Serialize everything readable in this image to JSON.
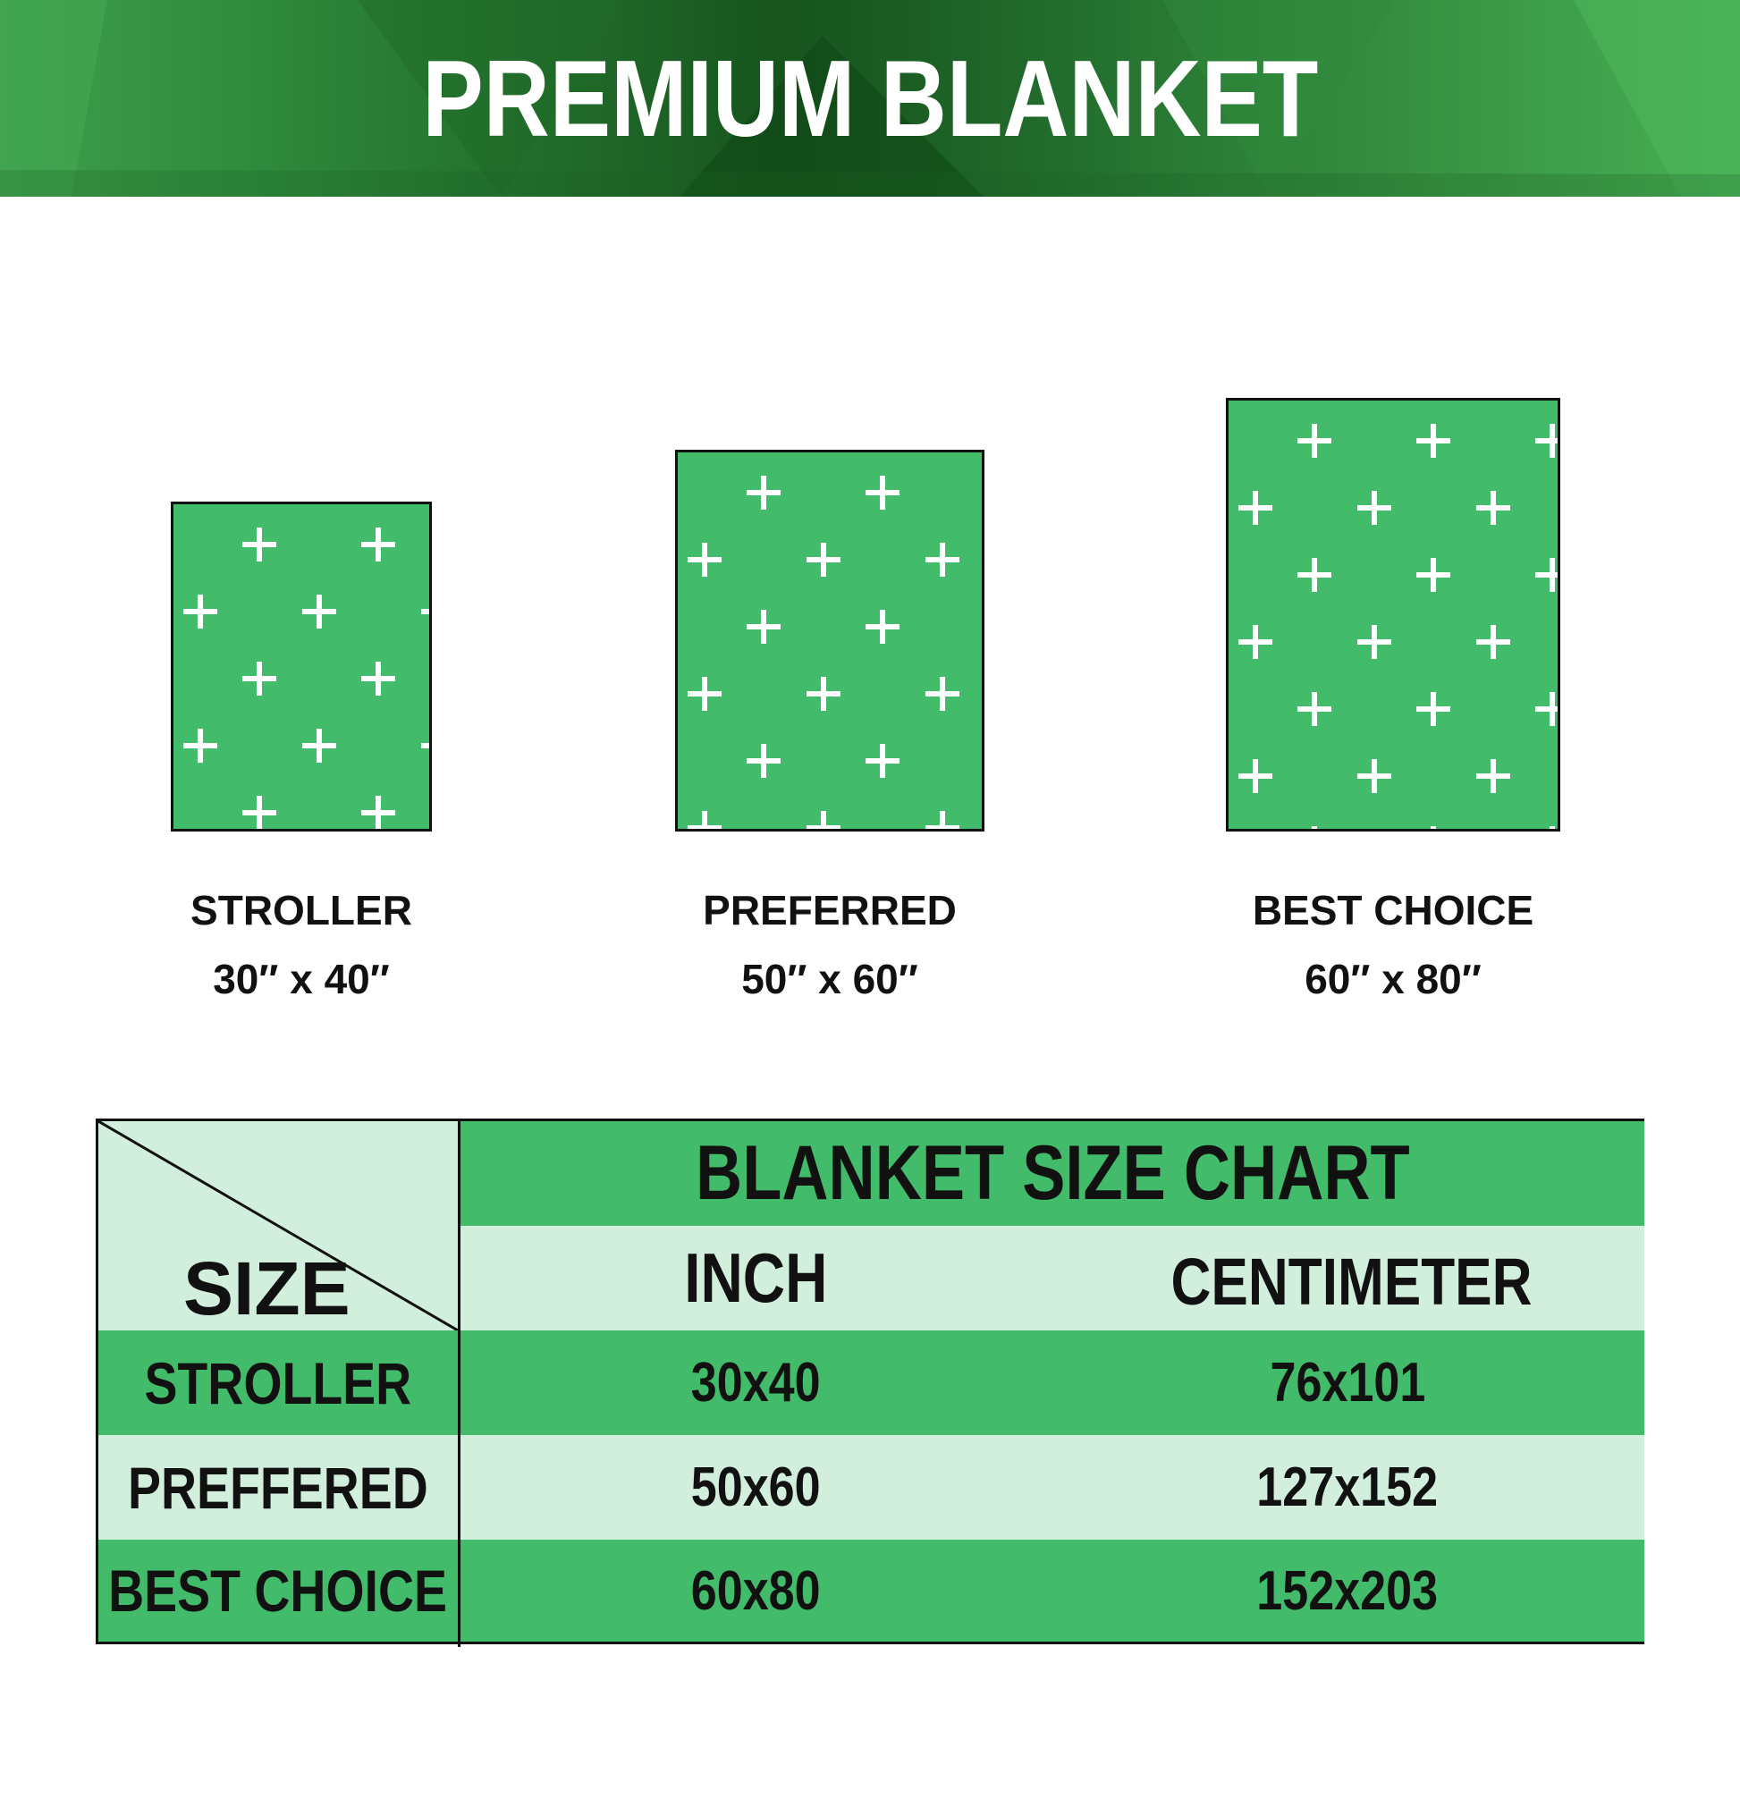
{
  "header": {
    "title": "PREMIUM BLANKET"
  },
  "colors": {
    "accent": "#42bb6b",
    "light": "#d2eedd",
    "header_dark": "#17541e"
  },
  "blankets": [
    {
      "name": "STROLLER",
      "size": "30″ x 40″",
      "pattern": "white-cross"
    },
    {
      "name": "PREFERRED",
      "size": "50″ x 60″",
      "pattern": "white-cross"
    },
    {
      "name": "BEST CHOICE",
      "size": "60″ x 80″",
      "pattern": "white-cross"
    }
  ],
  "table": {
    "title": "BLANKET SIZE CHART",
    "corner_label": "SIZE",
    "columns": [
      "INCH",
      "CENTIMETER"
    ],
    "rows": [
      {
        "size": "STROLLER",
        "inch": "30x40",
        "cm": "76x101"
      },
      {
        "size": "PREFFERED",
        "inch": "50x60",
        "cm": "127x152"
      },
      {
        "size": "BEST CHOICE",
        "inch": "60x80",
        "cm": "152x203"
      }
    ]
  }
}
